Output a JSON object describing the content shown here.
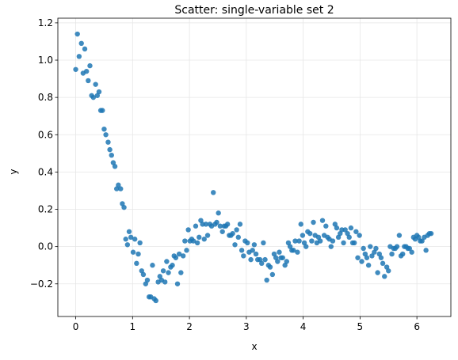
{
  "chart_data": {
    "type": "scatter",
    "title": "Scatter: single-variable set 2",
    "xlabel": "x",
    "ylabel": "y",
    "xlim": [
      -0.3142,
      6.5973
    ],
    "ylim": [
      -0.375,
      1.225
    ],
    "xticks": [
      0,
      1,
      2,
      3,
      4,
      5,
      6
    ],
    "yticks": [
      -0.2,
      0.0,
      0.2,
      0.4,
      0.6,
      0.8,
      1.0,
      1.2
    ],
    "ytick_labels": [
      "−0.2",
      "0.0",
      "0.2",
      "0.4",
      "0.6",
      "0.8",
      "1.0",
      "1.2"
    ],
    "grid": true,
    "marker_color": "#1f77b4",
    "points": [
      [
        0.0,
        0.95
      ],
      [
        0.03,
        1.14
      ],
      [
        0.06,
        1.02
      ],
      [
        0.1,
        1.09
      ],
      [
        0.13,
        0.93
      ],
      [
        0.16,
        1.06
      ],
      [
        0.19,
        0.94
      ],
      [
        0.22,
        0.89
      ],
      [
        0.25,
        0.97
      ],
      [
        0.28,
        0.81
      ],
      [
        0.31,
        0.8
      ],
      [
        0.35,
        0.87
      ],
      [
        0.38,
        0.81
      ],
      [
        0.41,
        0.83
      ],
      [
        0.44,
        0.73
      ],
      [
        0.47,
        0.73
      ],
      [
        0.5,
        0.63
      ],
      [
        0.53,
        0.6
      ],
      [
        0.57,
        0.56
      ],
      [
        0.6,
        0.52
      ],
      [
        0.63,
        0.49
      ],
      [
        0.66,
        0.45
      ],
      [
        0.69,
        0.43
      ],
      [
        0.72,
        0.31
      ],
      [
        0.75,
        0.33
      ],
      [
        0.79,
        0.31
      ],
      [
        0.82,
        0.23
      ],
      [
        0.85,
        0.21
      ],
      [
        0.88,
        0.04
      ],
      [
        0.91,
        0.01
      ],
      [
        0.94,
        0.08
      ],
      [
        0.97,
        0.05
      ],
      [
        1.01,
        -0.03
      ],
      [
        1.04,
        0.04
      ],
      [
        1.07,
        -0.09
      ],
      [
        1.1,
        -0.04
      ],
      [
        1.13,
        0.02
      ],
      [
        1.16,
        -0.13
      ],
      [
        1.19,
        -0.15
      ],
      [
        1.23,
        -0.2
      ],
      [
        1.26,
        -0.18
      ],
      [
        1.29,
        -0.27
      ],
      [
        1.32,
        -0.27
      ],
      [
        1.35,
        -0.1
      ],
      [
        1.38,
        -0.28
      ],
      [
        1.41,
        -0.29
      ],
      [
        1.45,
        -0.19
      ],
      [
        1.48,
        -0.16
      ],
      [
        1.51,
        -0.18
      ],
      [
        1.54,
        -0.13
      ],
      [
        1.57,
        -0.19
      ],
      [
        1.6,
        -0.08
      ],
      [
        1.63,
        -0.14
      ],
      [
        1.67,
        -0.11
      ],
      [
        1.7,
        -0.1
      ],
      [
        1.73,
        -0.05
      ],
      [
        1.76,
        -0.06
      ],
      [
        1.79,
        -0.2
      ],
      [
        1.82,
        -0.04
      ],
      [
        1.85,
        -0.14
      ],
      [
        1.89,
        -0.05
      ],
      [
        1.92,
        0.03
      ],
      [
        1.95,
        -0.02
      ],
      [
        1.98,
        0.09
      ],
      [
        2.01,
        0.03
      ],
      [
        2.04,
        0.04
      ],
      [
        2.07,
        0.03
      ],
      [
        2.11,
        0.11
      ],
      [
        2.14,
        0.02
      ],
      [
        2.17,
        0.05
      ],
      [
        2.2,
        0.14
      ],
      [
        2.23,
        0.12
      ],
      [
        2.26,
        0.04
      ],
      [
        2.29,
        0.12
      ],
      [
        2.32,
        0.06
      ],
      [
        2.36,
        0.12
      ],
      [
        2.39,
        0.11
      ],
      [
        2.42,
        0.29
      ],
      [
        2.45,
        0.12
      ],
      [
        2.48,
        0.13
      ],
      [
        2.51,
        0.18
      ],
      [
        2.54,
        0.11
      ],
      [
        2.58,
        0.08
      ],
      [
        2.61,
        0.11
      ],
      [
        2.64,
        0.11
      ],
      [
        2.67,
        0.12
      ],
      [
        2.7,
        0.06
      ],
      [
        2.73,
        0.06
      ],
      [
        2.76,
        0.07
      ],
      [
        2.8,
        0.01
      ],
      [
        2.83,
        0.09
      ],
      [
        2.86,
        0.05
      ],
      [
        2.89,
        0.12
      ],
      [
        2.92,
        -0.02
      ],
      [
        2.95,
        -0.05
      ],
      [
        2.98,
        0.03
      ],
      [
        3.02,
        0.02
      ],
      [
        3.05,
        -0.03
      ],
      [
        3.08,
        -0.07
      ],
      [
        3.11,
        -0.02
      ],
      [
        3.14,
        0.01
      ],
      [
        3.17,
        -0.04
      ],
      [
        3.2,
        -0.07
      ],
      [
        3.24,
        -0.07
      ],
      [
        3.27,
        -0.09
      ],
      [
        3.3,
        0.02
      ],
      [
        3.33,
        -0.07
      ],
      [
        3.36,
        -0.18
      ],
      [
        3.39,
        -0.1
      ],
      [
        3.42,
        -0.11
      ],
      [
        3.46,
        -0.15
      ],
      [
        3.49,
        -0.04
      ],
      [
        3.52,
        -0.06
      ],
      [
        3.55,
        -0.08
      ],
      [
        3.58,
        -0.03
      ],
      [
        3.61,
        -0.06
      ],
      [
        3.64,
        -0.06
      ],
      [
        3.68,
        -0.1
      ],
      [
        3.71,
        -0.08
      ],
      [
        3.74,
        0.02
      ],
      [
        3.77,
        0.0
      ],
      [
        3.8,
        -0.02
      ],
      [
        3.83,
        -0.02
      ],
      [
        3.86,
        0.03
      ],
      [
        3.9,
        -0.03
      ],
      [
        3.93,
        0.03
      ],
      [
        3.96,
        0.12
      ],
      [
        3.99,
        0.06
      ],
      [
        4.02,
        0.02
      ],
      [
        4.05,
        0.0
      ],
      [
        4.08,
        0.08
      ],
      [
        4.12,
        0.07
      ],
      [
        4.15,
        0.03
      ],
      [
        4.18,
        0.13
      ],
      [
        4.21,
        0.06
      ],
      [
        4.24,
        0.02
      ],
      [
        4.27,
        0.05
      ],
      [
        4.3,
        0.03
      ],
      [
        4.34,
        0.14
      ],
      [
        4.37,
        0.06
      ],
      [
        4.4,
        0.11
      ],
      [
        4.43,
        0.05
      ],
      [
        4.46,
        0.04
      ],
      [
        4.49,
        0.0
      ],
      [
        4.52,
        0.03
      ],
      [
        4.56,
        0.12
      ],
      [
        4.59,
        0.1
      ],
      [
        4.62,
        0.05
      ],
      [
        4.65,
        0.07
      ],
      [
        4.68,
        0.09
      ],
      [
        4.71,
        0.02
      ],
      [
        4.74,
        0.09
      ],
      [
        4.78,
        0.07
      ],
      [
        4.81,
        0.05
      ],
      [
        4.84,
        0.1
      ],
      [
        4.87,
        0.02
      ],
      [
        4.9,
        0.02
      ],
      [
        4.93,
        0.08
      ],
      [
        4.96,
        -0.06
      ],
      [
        4.99,
        0.06
      ],
      [
        5.03,
        -0.08
      ],
      [
        5.06,
        -0.01
      ],
      [
        5.09,
        -0.04
      ],
      [
        5.12,
        -0.06
      ],
      [
        5.15,
        -0.1
      ],
      [
        5.18,
        0.0
      ],
      [
        5.21,
        -0.05
      ],
      [
        5.25,
        -0.03
      ],
      [
        5.28,
        -0.01
      ],
      [
        5.31,
        -0.14
      ],
      [
        5.34,
        -0.04
      ],
      [
        5.37,
        -0.06
      ],
      [
        5.4,
        -0.09
      ],
      [
        5.43,
        -0.16
      ],
      [
        5.47,
        -0.11
      ],
      [
        5.5,
        -0.13
      ],
      [
        5.53,
        0.0
      ],
      [
        5.56,
        -0.04
      ],
      [
        5.59,
        -0.01
      ],
      [
        5.62,
        -0.01
      ],
      [
        5.65,
        0.0
      ],
      [
        5.69,
        0.06
      ],
      [
        5.72,
        -0.05
      ],
      [
        5.75,
        -0.04
      ],
      [
        5.78,
        0.0
      ],
      [
        5.81,
        0.0
      ],
      [
        5.84,
        -0.01
      ],
      [
        5.87,
        -0.01
      ],
      [
        5.91,
        -0.03
      ],
      [
        5.94,
        0.05
      ],
      [
        5.97,
        0.04
      ],
      [
        6.0,
        0.06
      ],
      [
        6.03,
        0.05
      ],
      [
        6.06,
        0.03
      ],
      [
        6.09,
        0.03
      ],
      [
        6.13,
        0.05
      ],
      [
        6.16,
        -0.02
      ],
      [
        6.19,
        0.06
      ],
      [
        6.22,
        0.07
      ],
      [
        6.25,
        0.07
      ]
    ]
  }
}
